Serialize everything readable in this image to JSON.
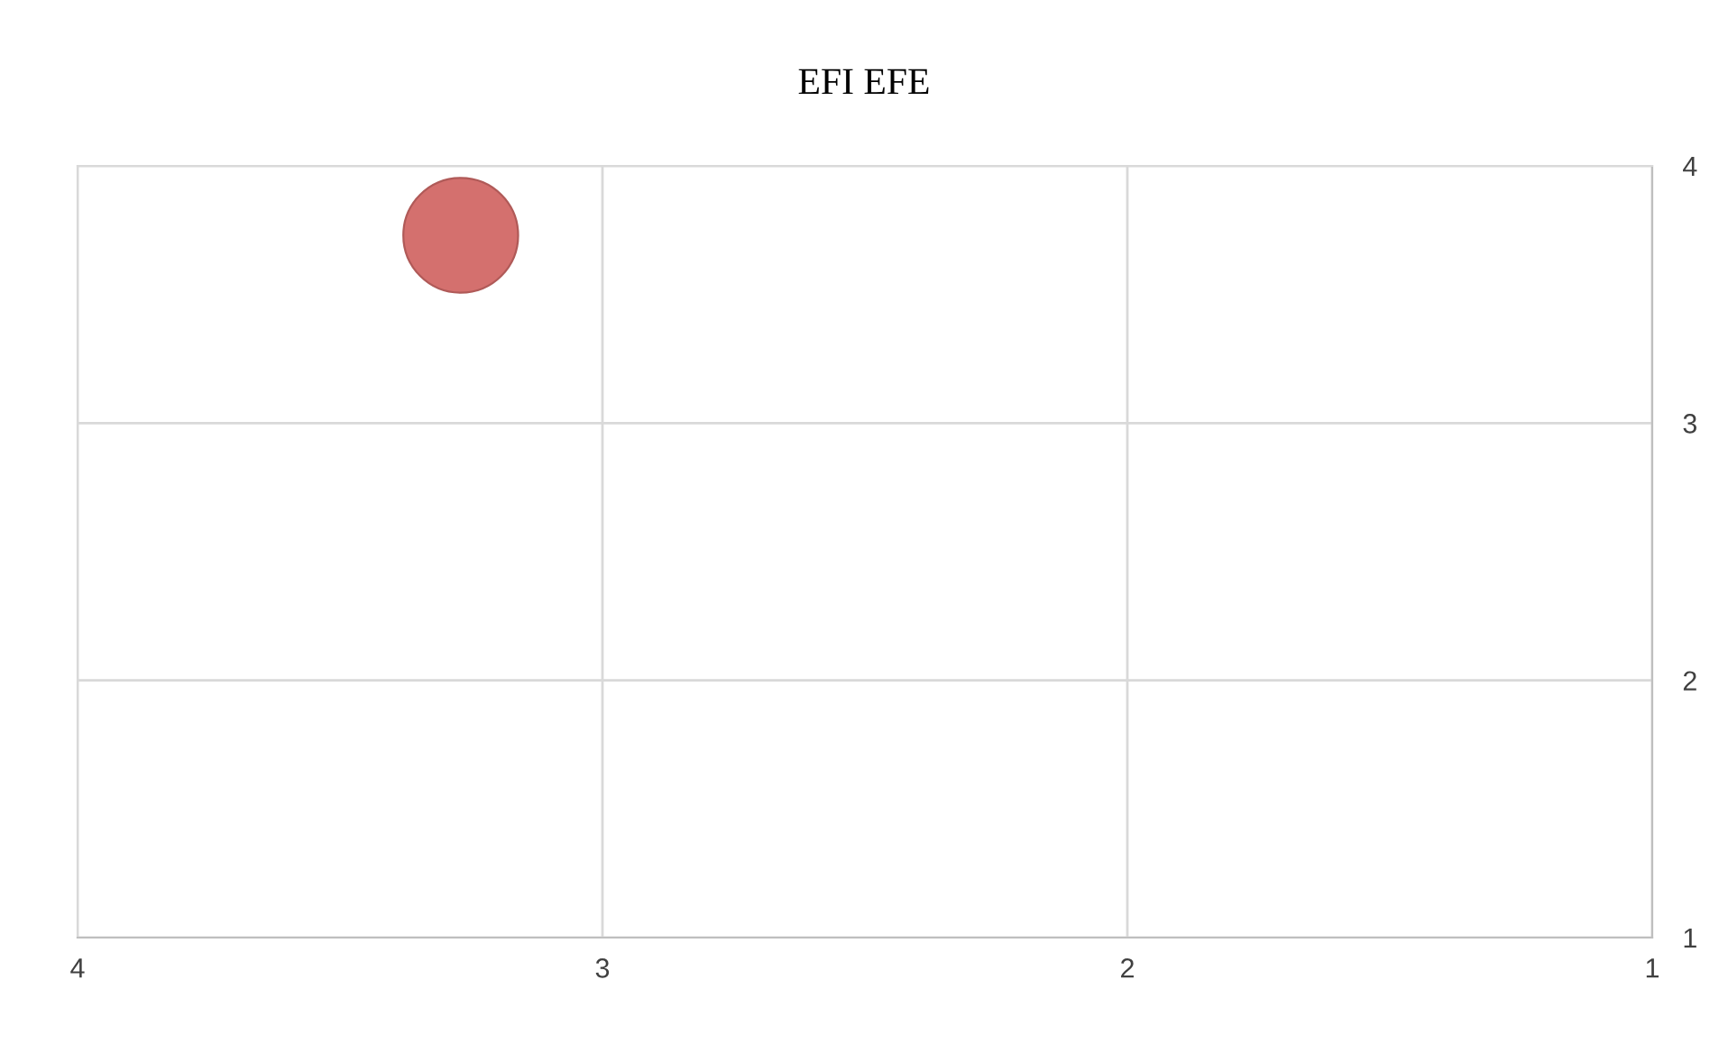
{
  "chart_data": {
    "type": "bubble",
    "title": "EFI EFE",
    "x": [
      3.27
    ],
    "series": [
      {
        "color": "#d4706e",
        "values": [
          3.73
        ],
        "sizes": [
          1
        ]
      }
    ],
    "xlim": [
      4,
      1
    ],
    "xticks": [
      4,
      3,
      2,
      1
    ],
    "ylim": [
      1,
      4
    ],
    "yticks": [
      1,
      2,
      3,
      4
    ],
    "grid": true,
    "legend": false
  }
}
